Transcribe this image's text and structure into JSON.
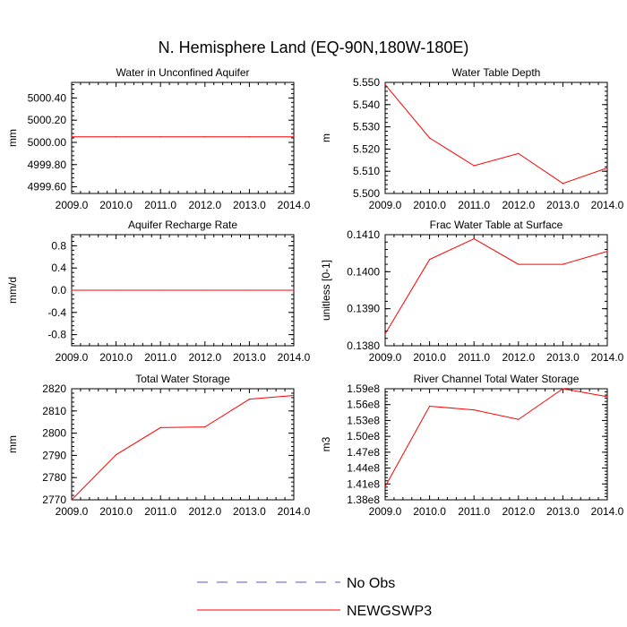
{
  "figure": {
    "title": "N. Hemisphere Land (EQ-90N,180W-180E)"
  },
  "legend": {
    "entries": [
      {
        "label": "No Obs",
        "color": "#5555cc",
        "style": "dashed"
      },
      {
        "label": "NEWGSWP3",
        "color": "#ff0000",
        "style": "solid"
      }
    ]
  },
  "chart_data": [
    {
      "type": "line",
      "title": "Water in Unconfined Aquifer",
      "xlabel": "",
      "ylabel": "mm",
      "x": [
        2009,
        2010,
        2011,
        2012,
        2013,
        2014
      ],
      "xlim": [
        2009,
        2014
      ],
      "ylim": [
        4999.54,
        5000.54
      ],
      "yticks": [
        4999.6,
        4999.8,
        5000.0,
        5000.2,
        5000.4
      ],
      "ytick_labels": [
        "4999.60",
        "4999.80",
        "5000.00",
        "5000.20",
        "5000.40"
      ],
      "series": [
        {
          "name": "NEWGSWP3",
          "color": "#ff0000",
          "values": [
            5000.05,
            5000.05,
            5000.05,
            5000.05,
            5000.05,
            5000.05
          ]
        }
      ]
    },
    {
      "type": "line",
      "title": "Water Table Depth",
      "xlabel": "",
      "ylabel": "m",
      "x": [
        2009,
        2010,
        2011,
        2012,
        2013,
        2014
      ],
      "xlim": [
        2009,
        2014
      ],
      "ylim": [
        5.5,
        5.55
      ],
      "yticks": [
        5.5,
        5.51,
        5.52,
        5.53,
        5.54,
        5.55
      ],
      "ytick_labels": [
        "5.500",
        "5.510",
        "5.520",
        "5.530",
        "5.540",
        "5.550"
      ],
      "series": [
        {
          "name": "NEWGSWP3",
          "color": "#ff0000",
          "values": [
            5.549,
            5.525,
            5.5125,
            5.518,
            5.5045,
            5.5115
          ]
        }
      ]
    },
    {
      "type": "line",
      "title": "Aquifer Recharge Rate",
      "xlabel": "",
      "ylabel": "mm/d",
      "x": [
        2009,
        2010,
        2011,
        2012,
        2013,
        2014
      ],
      "xlim": [
        2009,
        2014
      ],
      "ylim": [
        -1.0,
        1.0
      ],
      "yticks": [
        -0.8,
        -0.4,
        0.0,
        0.4,
        0.8
      ],
      "ytick_labels": [
        "-0.8",
        "-0.4",
        "0.0",
        "0.4",
        "0.8"
      ],
      "series": [
        {
          "name": "NEWGSWP3",
          "color": "#ff0000",
          "values": [
            0,
            0,
            0,
            0,
            0,
            0
          ]
        }
      ]
    },
    {
      "type": "line",
      "title": "Frac Water Table at Surface",
      "xlabel": "",
      "ylabel": "unitless [0-1]",
      "x": [
        2009,
        2010,
        2011,
        2012,
        2013,
        2014
      ],
      "xlim": [
        2009,
        2014
      ],
      "ylim": [
        0.138,
        0.141
      ],
      "yticks": [
        0.138,
        0.139,
        0.14,
        0.141
      ],
      "ytick_labels": [
        "0.1380",
        "0.1390",
        "0.1400",
        "0.1410"
      ],
      "series": [
        {
          "name": "NEWGSWP3",
          "color": "#ff0000",
          "values": [
            0.13832,
            0.14033,
            0.14089,
            0.1402,
            0.1402,
            0.14055
          ]
        }
      ]
    },
    {
      "type": "line",
      "title": "Total Water Storage",
      "xlabel": "",
      "ylabel": "mm",
      "x": [
        2009,
        2010,
        2011,
        2012,
        2013,
        2014
      ],
      "xlim": [
        2009,
        2014
      ],
      "ylim": [
        2770,
        2820
      ],
      "yticks": [
        2770,
        2780,
        2790,
        2800,
        2810,
        2820
      ],
      "ytick_labels": [
        "2770",
        "2780",
        "2790",
        "2800",
        "2810",
        "2820"
      ],
      "series": [
        {
          "name": "NEWGSWP3",
          "color": "#ff0000",
          "values": [
            2770,
            2790.3,
            2802.5,
            2802.8,
            2815.3,
            2817
          ]
        }
      ]
    },
    {
      "type": "line",
      "title": "River Channel Total Water Storage",
      "xlabel": "",
      "ylabel": "m3",
      "x": [
        2009,
        2010,
        2011,
        2012,
        2013,
        2014
      ],
      "xlim": [
        2009,
        2014
      ],
      "ylim": [
        138000000,
        159000000
      ],
      "yticks": [
        138000000,
        141000000,
        144000000,
        147000000,
        150000000,
        153000000,
        156000000,
        159000000
      ],
      "ytick_labels": [
        "1.38e8",
        "1.41e8",
        "1.44e8",
        "1.47e8",
        "1.50e8",
        "1.53e8",
        "1.56e8",
        "1.59e8"
      ],
      "series": [
        {
          "name": "NEWGSWP3",
          "color": "#ff0000",
          "values": [
            140500000,
            155700000,
            155000000,
            153200000,
            159000000,
            157500000
          ]
        }
      ]
    }
  ],
  "x_tick_labels": [
    "2009.0",
    "2010.0",
    "2011.0",
    "2012.0",
    "2013.0",
    "2014.0"
  ]
}
